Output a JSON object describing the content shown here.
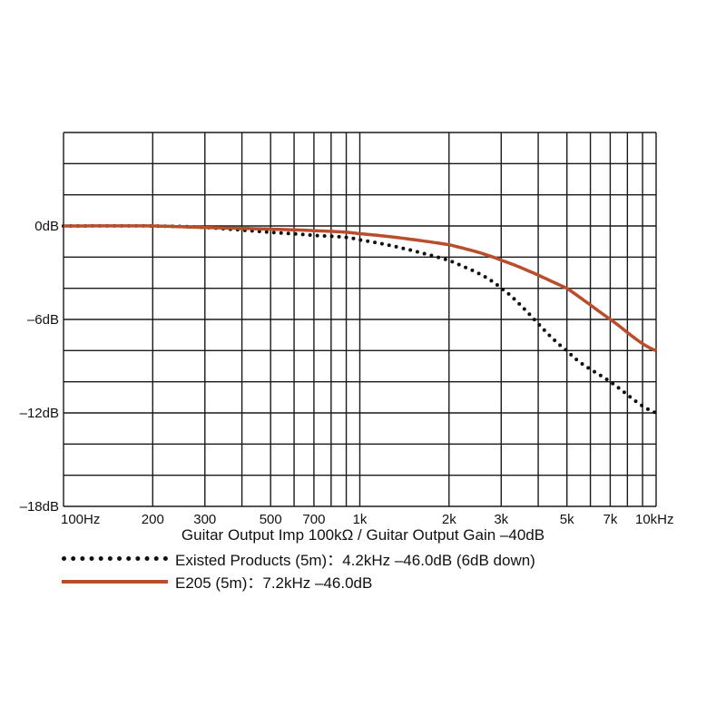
{
  "chart_data": {
    "type": "line",
    "title": "",
    "xlabel": "Guitar Output Imp 100kΩ / Guitar Output Gain –40dB",
    "ylabel": "",
    "xscale": "log",
    "xlim": [
      100,
      10000
    ],
    "ylim": [
      -18,
      6
    ],
    "grid": true,
    "legend_position": "bottom",
    "y_ticks": [
      {
        "value": 0,
        "label": "0dB"
      },
      {
        "value": -6,
        "label": "–6dB"
      },
      {
        "value": -12,
        "label": "–12dB"
      },
      {
        "value": -18,
        "label": "–18dB"
      }
    ],
    "x_ticks": [
      {
        "value": 100,
        "label": "100Hz"
      },
      {
        "value": 200,
        "label": "200"
      },
      {
        "value": 300,
        "label": "300"
      },
      {
        "value": 500,
        "label": "500"
      },
      {
        "value": 700,
        "label": "700"
      },
      {
        "value": 1000,
        "label": "1k"
      },
      {
        "value": 2000,
        "label": "2k"
      },
      {
        "value": 3000,
        "label": "3k"
      },
      {
        "value": 5000,
        "label": "5k"
      },
      {
        "value": 7000,
        "label": "7k"
      },
      {
        "value": 10000,
        "label": "10kHz"
      }
    ],
    "x": [
      100,
      200,
      300,
      500,
      700,
      1000,
      2000,
      3000,
      5000,
      7000,
      10000
    ],
    "series": [
      {
        "name": "Existed Products (5m) : 4.2kHz –46.0dB (6dB down)",
        "style": "dotted",
        "color": "#111111",
        "values": [
          0,
          0,
          -0.1,
          -0.4,
          -0.6,
          -0.9,
          -2.2,
          -4.0,
          -8.0,
          -10.0,
          -12.0
        ]
      },
      {
        "name": "E205 (5m) : 7.2kHz –46.0dB",
        "style": "solid",
        "color": "#b84e2c",
        "values": [
          0,
          0,
          -0.1,
          -0.2,
          -0.3,
          -0.5,
          -1.2,
          -2.2,
          -4.0,
          -6.0,
          -8.0
        ]
      }
    ]
  },
  "caption": "Guitar Output Imp 100kΩ / Guitar Output Gain –40dB",
  "legend": {
    "existed": "Existed Products (5m)：4.2kHz –46.0dB (6dB down)",
    "e205": "E205 (5m)：7.2kHz –46.0dB"
  }
}
